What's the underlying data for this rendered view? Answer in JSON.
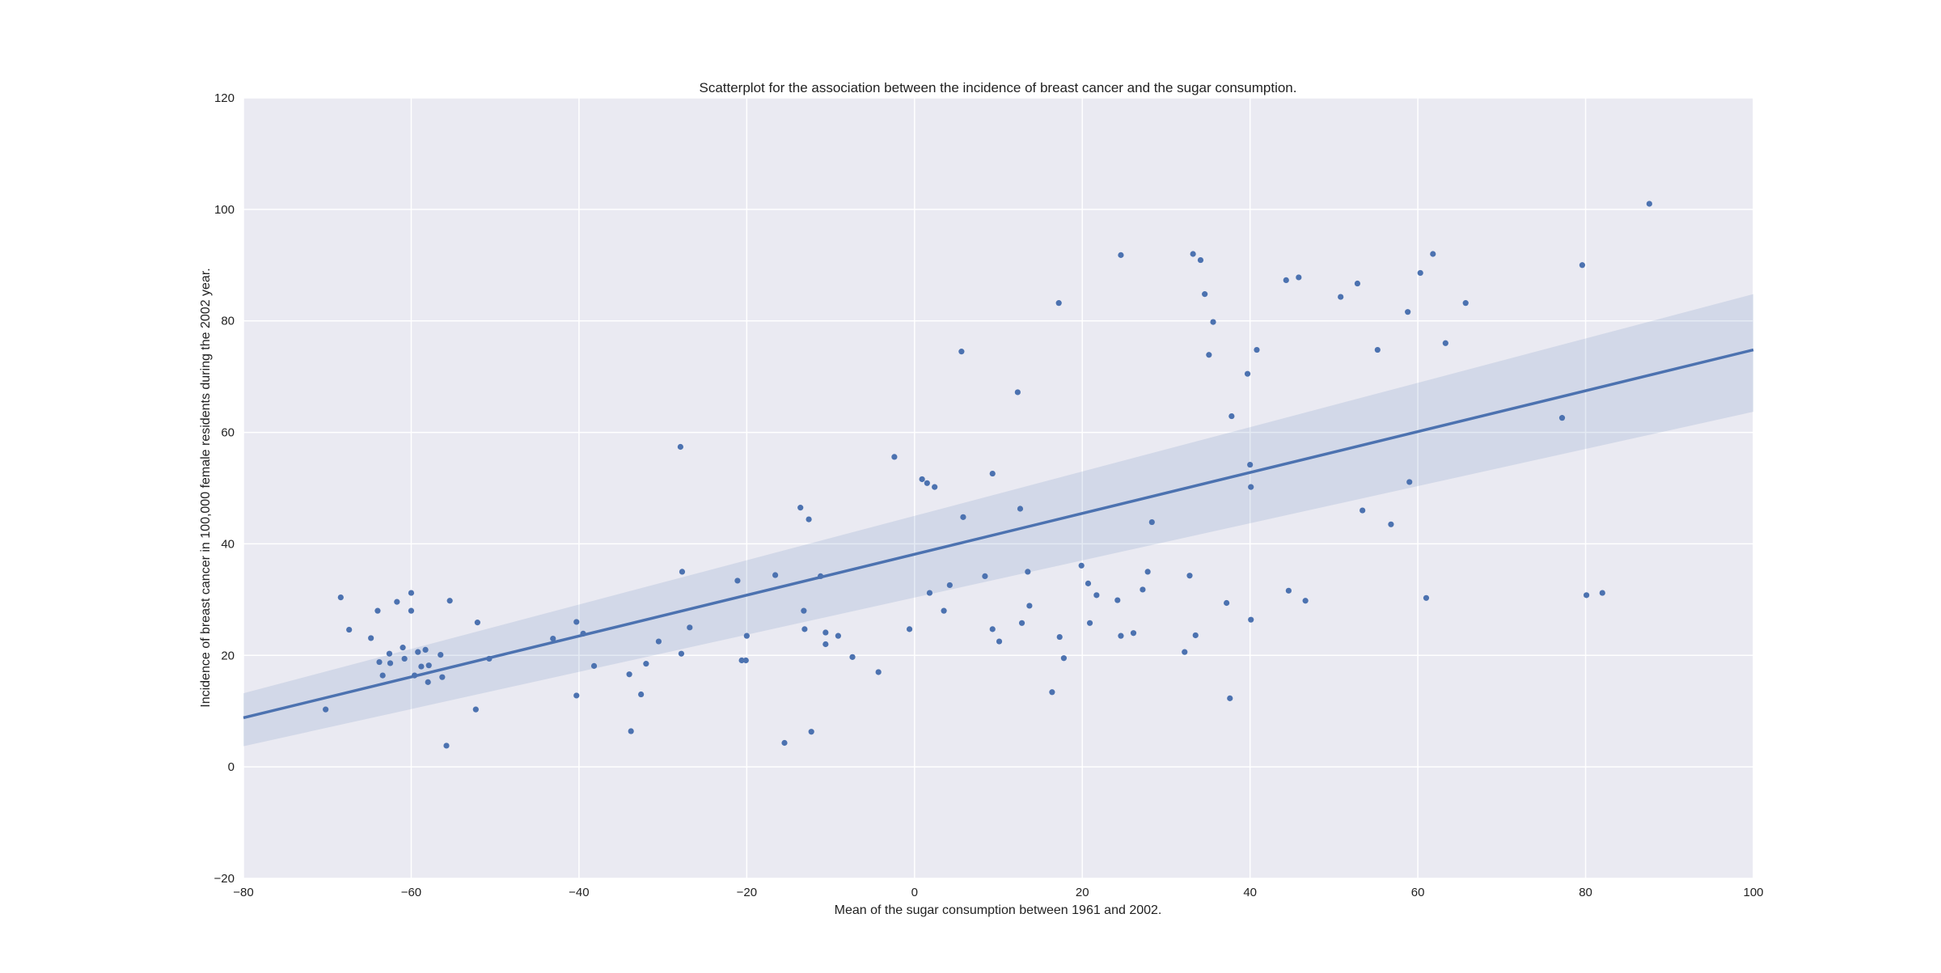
{
  "chart_data": {
    "type": "scatter",
    "title": "Scatterplot for the association between the incidence of breast cancer and the sugar consumption.",
    "xlabel": "Mean of the sugar consumption between 1961 and 2002.",
    "ylabel": "Incidence of breast cancer in 100,000 female residents during the 2002 year.",
    "xlim": [
      -80,
      100
    ],
    "ylim": [
      -20,
      120
    ],
    "xticks": [
      -80,
      -60,
      -40,
      -20,
      0,
      20,
      40,
      60,
      80,
      100
    ],
    "yticks": [
      -20,
      0,
      20,
      40,
      60,
      80,
      100,
      120
    ],
    "grid": true,
    "colors": {
      "background": "#eaeaf2",
      "grid": "#ffffff",
      "points": "#4c72b0",
      "line": "#4c72b0",
      "ci_band": "#4c72b0"
    },
    "regression": {
      "x": [
        -80,
        100
      ],
      "y": [
        8.8,
        74.8
      ],
      "ci_lower": [
        3.7,
        63.7
      ],
      "ci_upper": [
        13.2,
        84.8
      ]
    },
    "points": [
      [
        -70.2,
        10.3
      ],
      [
        -68.4,
        30.4
      ],
      [
        -67.4,
        24.6
      ],
      [
        -64.8,
        23.1
      ],
      [
        -64.0,
        28.0
      ],
      [
        -63.8,
        18.8
      ],
      [
        -63.4,
        16.4
      ],
      [
        -62.6,
        20.3
      ],
      [
        -62.5,
        18.6
      ],
      [
        -61.7,
        29.6
      ],
      [
        -61.0,
        21.4
      ],
      [
        -60.8,
        19.4
      ],
      [
        -60.0,
        31.2
      ],
      [
        -60.0,
        28.0
      ],
      [
        -59.6,
        16.4
      ],
      [
        -59.2,
        20.6
      ],
      [
        -58.8,
        18.0
      ],
      [
        -58.3,
        21.0
      ],
      [
        -58.0,
        15.2
      ],
      [
        -57.9,
        18.2
      ],
      [
        -56.5,
        20.1
      ],
      [
        -56.3,
        16.1
      ],
      [
        -55.8,
        3.8
      ],
      [
        -55.4,
        29.8
      ],
      [
        -52.3,
        10.3
      ],
      [
        -52.1,
        25.9
      ],
      [
        -50.7,
        19.4
      ],
      [
        -43.1,
        23.0
      ],
      [
        -40.3,
        26.0
      ],
      [
        -40.3,
        12.8
      ],
      [
        -39.5,
        23.9
      ],
      [
        -38.2,
        18.1
      ],
      [
        -34.0,
        16.6
      ],
      [
        -33.8,
        6.4
      ],
      [
        -32.6,
        13.0
      ],
      [
        -32.0,
        18.5
      ],
      [
        -30.5,
        22.5
      ],
      [
        -27.9,
        57.4
      ],
      [
        -27.8,
        20.3
      ],
      [
        -27.7,
        35.0
      ],
      [
        -26.8,
        25.0
      ],
      [
        -21.1,
        33.4
      ],
      [
        -20.6,
        19.1
      ],
      [
        -20.1,
        19.1
      ],
      [
        -20.0,
        23.5
      ],
      [
        -16.6,
        34.4
      ],
      [
        -15.5,
        4.3
      ],
      [
        -13.6,
        46.5
      ],
      [
        -13.2,
        28.0
      ],
      [
        -13.1,
        24.7
      ],
      [
        -12.6,
        44.4
      ],
      [
        -12.3,
        6.3
      ],
      [
        -11.2,
        34.2
      ],
      [
        -10.6,
        22.0
      ],
      [
        -10.6,
        24.1
      ],
      [
        -9.1,
        23.5
      ],
      [
        -7.4,
        19.7
      ],
      [
        -4.3,
        17.0
      ],
      [
        -2.4,
        55.6
      ],
      [
        -0.6,
        24.7
      ],
      [
        0.9,
        51.6
      ],
      [
        1.5,
        50.9
      ],
      [
        1.8,
        31.2
      ],
      [
        2.4,
        50.2
      ],
      [
        3.5,
        28.0
      ],
      [
        4.2,
        32.6
      ],
      [
        5.6,
        74.5
      ],
      [
        5.8,
        44.8
      ],
      [
        8.4,
        34.2
      ],
      [
        9.3,
        52.6
      ],
      [
        9.3,
        24.7
      ],
      [
        10.1,
        22.5
      ],
      [
        12.3,
        67.2
      ],
      [
        12.6,
        46.3
      ],
      [
        12.8,
        25.8
      ],
      [
        13.5,
        35.0
      ],
      [
        13.7,
        28.9
      ],
      [
        16.4,
        13.4
      ],
      [
        17.2,
        83.2
      ],
      [
        17.3,
        23.3
      ],
      [
        17.8,
        19.5
      ],
      [
        19.9,
        36.1
      ],
      [
        20.7,
        32.9
      ],
      [
        20.9,
        25.8
      ],
      [
        21.7,
        30.8
      ],
      [
        24.2,
        29.9
      ],
      [
        24.6,
        91.8
      ],
      [
        24.6,
        23.5
      ],
      [
        26.1,
        24.0
      ],
      [
        27.2,
        31.8
      ],
      [
        27.8,
        35.0
      ],
      [
        28.3,
        43.9
      ],
      [
        32.2,
        20.6
      ],
      [
        32.8,
        34.3
      ],
      [
        33.2,
        92.0
      ],
      [
        33.5,
        23.6
      ],
      [
        34.1,
        90.9
      ],
      [
        34.6,
        84.8
      ],
      [
        35.1,
        73.9
      ],
      [
        35.6,
        79.8
      ],
      [
        37.2,
        29.4
      ],
      [
        37.6,
        12.3
      ],
      [
        37.8,
        62.9
      ],
      [
        39.7,
        70.5
      ],
      [
        40.0,
        54.2
      ],
      [
        40.1,
        50.2
      ],
      [
        40.1,
        26.4
      ],
      [
        40.8,
        74.8
      ],
      [
        44.3,
        87.3
      ],
      [
        44.6,
        31.6
      ],
      [
        45.8,
        87.8
      ],
      [
        46.6,
        29.8
      ],
      [
        50.8,
        84.3
      ],
      [
        52.8,
        86.7
      ],
      [
        53.4,
        46.0
      ],
      [
        55.2,
        74.8
      ],
      [
        56.8,
        43.5
      ],
      [
        58.8,
        81.6
      ],
      [
        59.0,
        51.1
      ],
      [
        60.3,
        88.6
      ],
      [
        61.0,
        30.3
      ],
      [
        61.8,
        92.0
      ],
      [
        63.3,
        76.0
      ],
      [
        65.7,
        83.2
      ],
      [
        77.2,
        62.6
      ],
      [
        79.6,
        90.0
      ],
      [
        80.1,
        30.8
      ],
      [
        82.0,
        31.2
      ],
      [
        87.6,
        101.0
      ]
    ]
  }
}
